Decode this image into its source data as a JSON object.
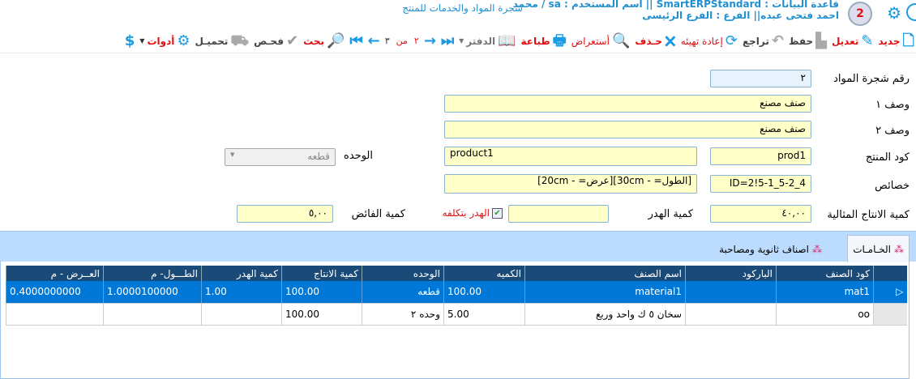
{
  "header": {
    "line1": "قاعدة البيانات : SmartERPStandard || اسم المستخدم : sa / محمد",
    "line2": "احمد فتحى عبده|| الفرع : الفرع الرئيسى",
    "screen_title": "شجرة المواد والخدمات للمنتج",
    "avatar_badge": "2"
  },
  "toolbar": {
    "new": "جديد",
    "edit": "تعديل",
    "save": "حفظ",
    "undo": "تراجع",
    "reset": "إعادة تهيئه",
    "delete": "حـذف",
    "preview": "أستعراض",
    "print": "طباعة",
    "ledger": "الدفتر",
    "nav_current": "٢",
    "nav_of": "من",
    "nav_total": "٣",
    "search": "بحث",
    "check": "فحـص",
    "load": "تحميـل",
    "tools": "أدوات"
  },
  "form": {
    "tree_no_label": "رقم شجرة المواد",
    "tree_no": "٢",
    "desc1_label": "وصف ١",
    "desc1": "صنف مصنع",
    "desc2_label": "وصف ٢",
    "desc2": "صنف مصنع",
    "product_code_label": "كود المنتج",
    "product_code": "prod1",
    "product_name": "product1",
    "unit_label": "الوحده",
    "unit": "قطعه",
    "attrs_label": "خصائص",
    "attrs_id": "ID=2!5-1_5-2_4",
    "attrs_text": "[الطول=  - 30cm][عرض=  - 20cm]",
    "ideal_qty_label": "كمية الانتاج المثالية",
    "ideal_qty": "٤٠,٠٠",
    "waste_qty_label": "كمية الهدر",
    "waste_qty": "",
    "waste_cost_label": "الهدر بتكلفه",
    "waste_cost_checked": true,
    "surplus_label": "كمية الفائض",
    "surplus": "٥,٠٠"
  },
  "tabs": [
    {
      "label": "الخـامـات",
      "active": true
    },
    {
      "label": "اصناف ثانوية ومصاحبة",
      "active": false
    }
  ],
  "grid": {
    "columns": [
      "كود الصنف",
      "الباركود",
      "اسم الصنف",
      "الكميه",
      "الوحده",
      "كمية الانتاج",
      "كمية الهدر",
      "الطـــول- م",
      "العــرض - م"
    ],
    "rows": [
      [
        "mat1",
        "",
        "material1",
        "100.00",
        "قطعه",
        "100.00",
        "1.00",
        "1.0000100000",
        "0.4000000000"
      ],
      [
        "oo",
        "",
        "سخان ٥ ك واحد وربع",
        "5.00",
        "وحده ٢",
        "100.00",
        "",
        "",
        ""
      ]
    ]
  },
  "colors": {
    "accent": "#1a9ae0",
    "label_red": "#e01010",
    "grid_header": "#1a4a78",
    "selected_row": "#0078d7",
    "input_bg": "#ffffc8"
  }
}
